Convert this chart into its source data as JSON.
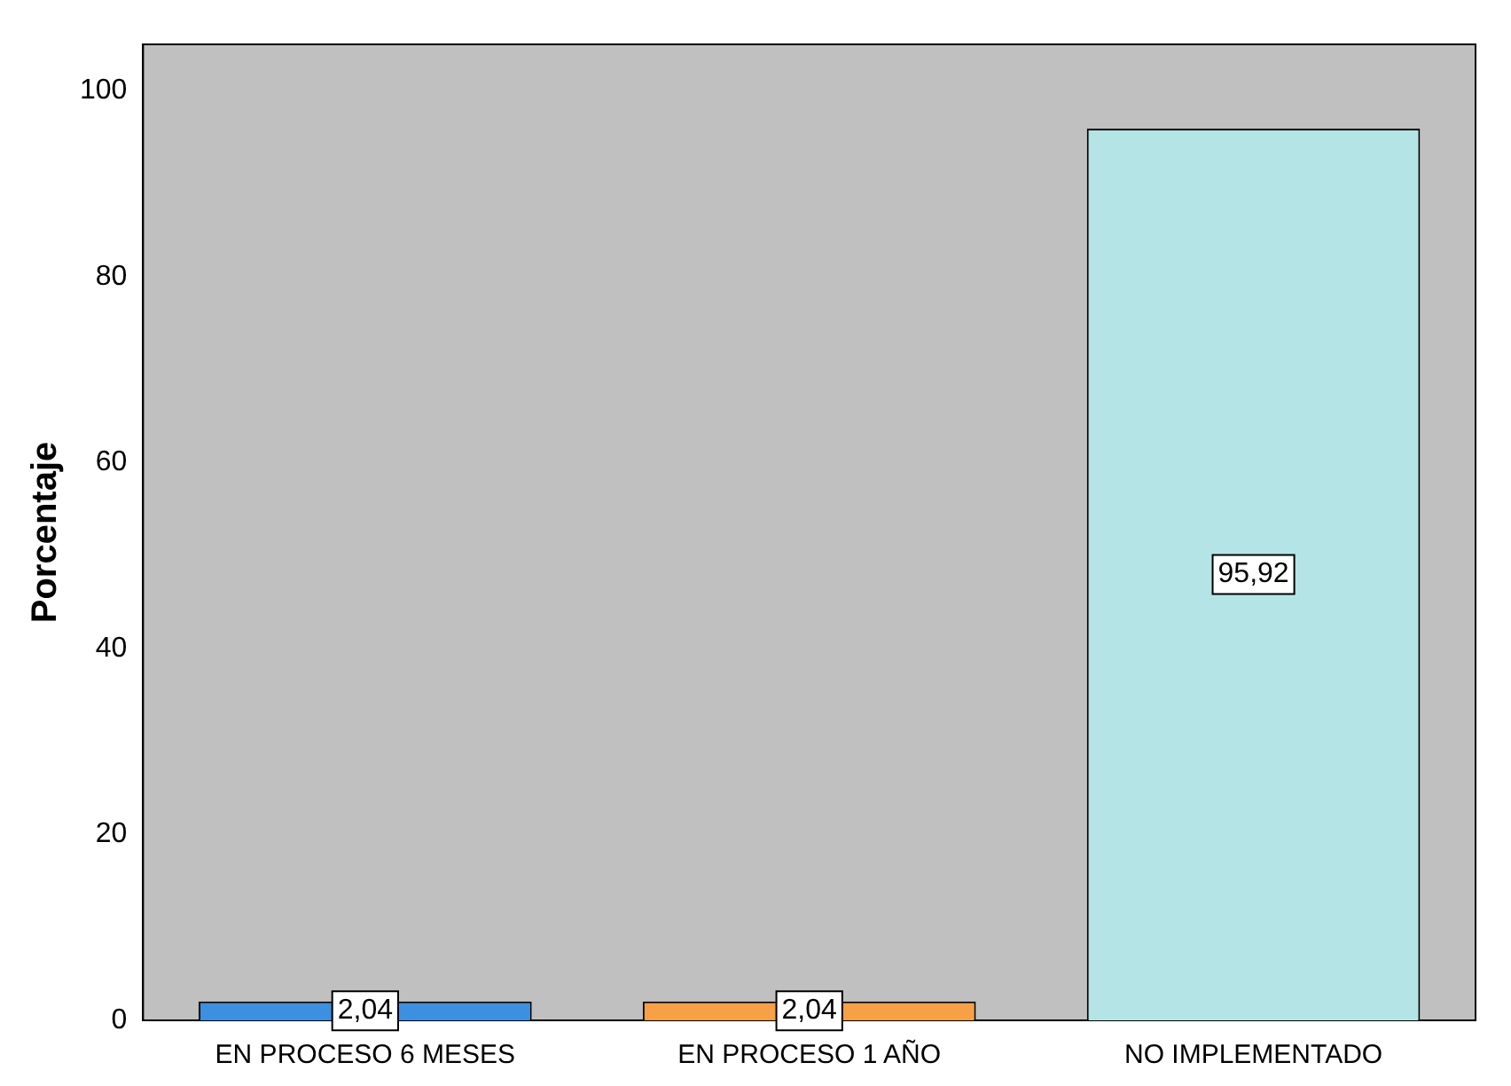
{
  "chart_data": {
    "type": "bar",
    "ylabel": "Porcentaje",
    "categories": [
      "EN PROCESO 6 MESES",
      "EN PROCESO 1 AÑO",
      "NO IMPLEMENTADO"
    ],
    "values": [
      2.04,
      2.04,
      95.92
    ],
    "colors": [
      "#3d8fe0",
      "#f7a045",
      "#b4e4e6"
    ],
    "value_labels": [
      "2,04",
      "2,04",
      "95,92"
    ],
    "ylim": [
      0,
      105
    ],
    "yticks": [
      0,
      20,
      40,
      60,
      80,
      100
    ],
    "grid": false,
    "legend": false
  }
}
